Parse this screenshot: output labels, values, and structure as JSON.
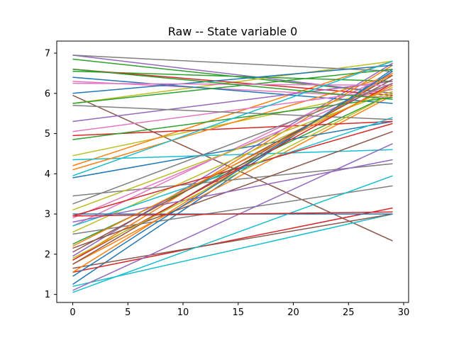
{
  "chart_data": {
    "type": "line",
    "title": "Raw -- State variable 0",
    "xlabel": "",
    "ylabel": "",
    "xlim": [
      -1.45,
      30.45
    ],
    "ylim": [
      0.8,
      7.3
    ],
    "x_ticks": [
      0,
      5,
      10,
      15,
      20,
      25,
      30
    ],
    "y_ticks": [
      1,
      2,
      3,
      4,
      5,
      6,
      7
    ],
    "grid": false,
    "legend": "none",
    "x": [
      0,
      29
    ],
    "series": [
      {
        "color": "#1f77b4",
        "values": [
          1.25,
          6.6
        ]
      },
      {
        "color": "#ff7f0e",
        "values": [
          1.75,
          5.95
        ]
      },
      {
        "color": "#2ca02c",
        "values": [
          2.25,
          6.0
        ]
      },
      {
        "color": "#d62728",
        "values": [
          1.55,
          3.15
        ]
      },
      {
        "color": "#9467bd",
        "values": [
          1.95,
          6.75
        ]
      },
      {
        "color": "#8c564b",
        "values": [
          5.95,
          2.33
        ]
      },
      {
        "color": "#e377c2",
        "values": [
          2.7,
          6.5
        ]
      },
      {
        "color": "#7f7f7f",
        "values": [
          3.45,
          4.25
        ]
      },
      {
        "color": "#bcbd22",
        "values": [
          4.45,
          6.1
        ]
      },
      {
        "color": "#17becf",
        "values": [
          1.2,
          3.0
        ]
      },
      {
        "color": "#1f77b4",
        "values": [
          3.9,
          5.3
        ]
      },
      {
        "color": "#ff7f0e",
        "values": [
          4.2,
          6.8
        ]
      },
      {
        "color": "#2ca02c",
        "values": [
          6.85,
          6.0
        ]
      },
      {
        "color": "#d62728",
        "values": [
          4.95,
          5.3
        ]
      },
      {
        "color": "#9467bd",
        "values": [
          6.95,
          6.0
        ]
      },
      {
        "color": "#8c564b",
        "values": [
          1.65,
          3.0
        ]
      },
      {
        "color": "#e377c2",
        "values": [
          6.3,
          5.9
        ]
      },
      {
        "color": "#7f7f7f",
        "values": [
          2.5,
          3.7
        ]
      },
      {
        "color": "#bcbd22",
        "values": [
          5.75,
          6.8
        ]
      },
      {
        "color": "#17becf",
        "values": [
          4.35,
          4.6
        ]
      },
      {
        "color": "#1f77b4",
        "values": [
          6.4,
          5.75
        ]
      },
      {
        "color": "#ff7f0e",
        "values": [
          1.85,
          6.7
        ]
      },
      {
        "color": "#2ca02c",
        "values": [
          6.55,
          6.3
        ]
      },
      {
        "color": "#d62728",
        "values": [
          6.6,
          5.95
        ]
      },
      {
        "color": "#9467bd",
        "values": [
          1.1,
          4.75
        ]
      },
      {
        "color": "#8c564b",
        "values": [
          2.15,
          5.05
        ]
      },
      {
        "color": "#e377c2",
        "values": [
          2.9,
          6.25
        ]
      },
      {
        "color": "#7f7f7f",
        "values": [
          6.95,
          6.55
        ]
      },
      {
        "color": "#bcbd22",
        "values": [
          2.55,
          6.15
        ]
      },
      {
        "color": "#17becf",
        "values": [
          2.7,
          5.4
        ]
      },
      {
        "color": "#1f77b4",
        "values": [
          3.0,
          3.0
        ]
      },
      {
        "color": "#ff7f0e",
        "values": [
          4.1,
          6.45
        ]
      },
      {
        "color": "#2ca02c",
        "values": [
          5.75,
          6.6
        ]
      },
      {
        "color": "#d62728",
        "values": [
          2.95,
          5.25
        ]
      },
      {
        "color": "#9467bd",
        "values": [
          5.3,
          6.3
        ]
      },
      {
        "color": "#8c564b",
        "values": [
          1.75,
          6.45
        ]
      },
      {
        "color": "#e377c2",
        "values": [
          5.05,
          6.1
        ]
      },
      {
        "color": "#7f7f7f",
        "values": [
          5.7,
          5.35
        ]
      },
      {
        "color": "#bcbd22",
        "values": [
          3.1,
          6.05
        ]
      },
      {
        "color": "#17becf",
        "values": [
          1.05,
          3.95
        ]
      },
      {
        "color": "#1f77b4",
        "values": [
          6.0,
          6.7
        ]
      },
      {
        "color": "#ff7f0e",
        "values": [
          1.55,
          6.5
        ]
      },
      {
        "color": "#2ca02c",
        "values": [
          4.85,
          5.9
        ]
      },
      {
        "color": "#d62728",
        "values": [
          1.85,
          6.25
        ]
      },
      {
        "color": "#9467bd",
        "values": [
          2.8,
          4.35
        ]
      },
      {
        "color": "#8c564b",
        "values": [
          2.05,
          6.35
        ]
      },
      {
        "color": "#e377c2",
        "values": [
          6.25,
          6.2
        ]
      },
      {
        "color": "#7f7f7f",
        "values": [
          3.25,
          6.25
        ]
      },
      {
        "color": "#bcbd22",
        "values": [
          1.9,
          6.0
        ]
      },
      {
        "color": "#17becf",
        "values": [
          3.95,
          6.8
        ]
      },
      {
        "color": "#1f77b4",
        "values": [
          1.45,
          6.55
        ]
      },
      {
        "color": "#ff7f0e",
        "values": [
          2.2,
          6.2
        ]
      },
      {
        "color": "#2ca02c",
        "values": [
          6.6,
          5.85
        ]
      },
      {
        "color": "#d62728",
        "values": [
          2.95,
          3.05
        ]
      }
    ]
  }
}
